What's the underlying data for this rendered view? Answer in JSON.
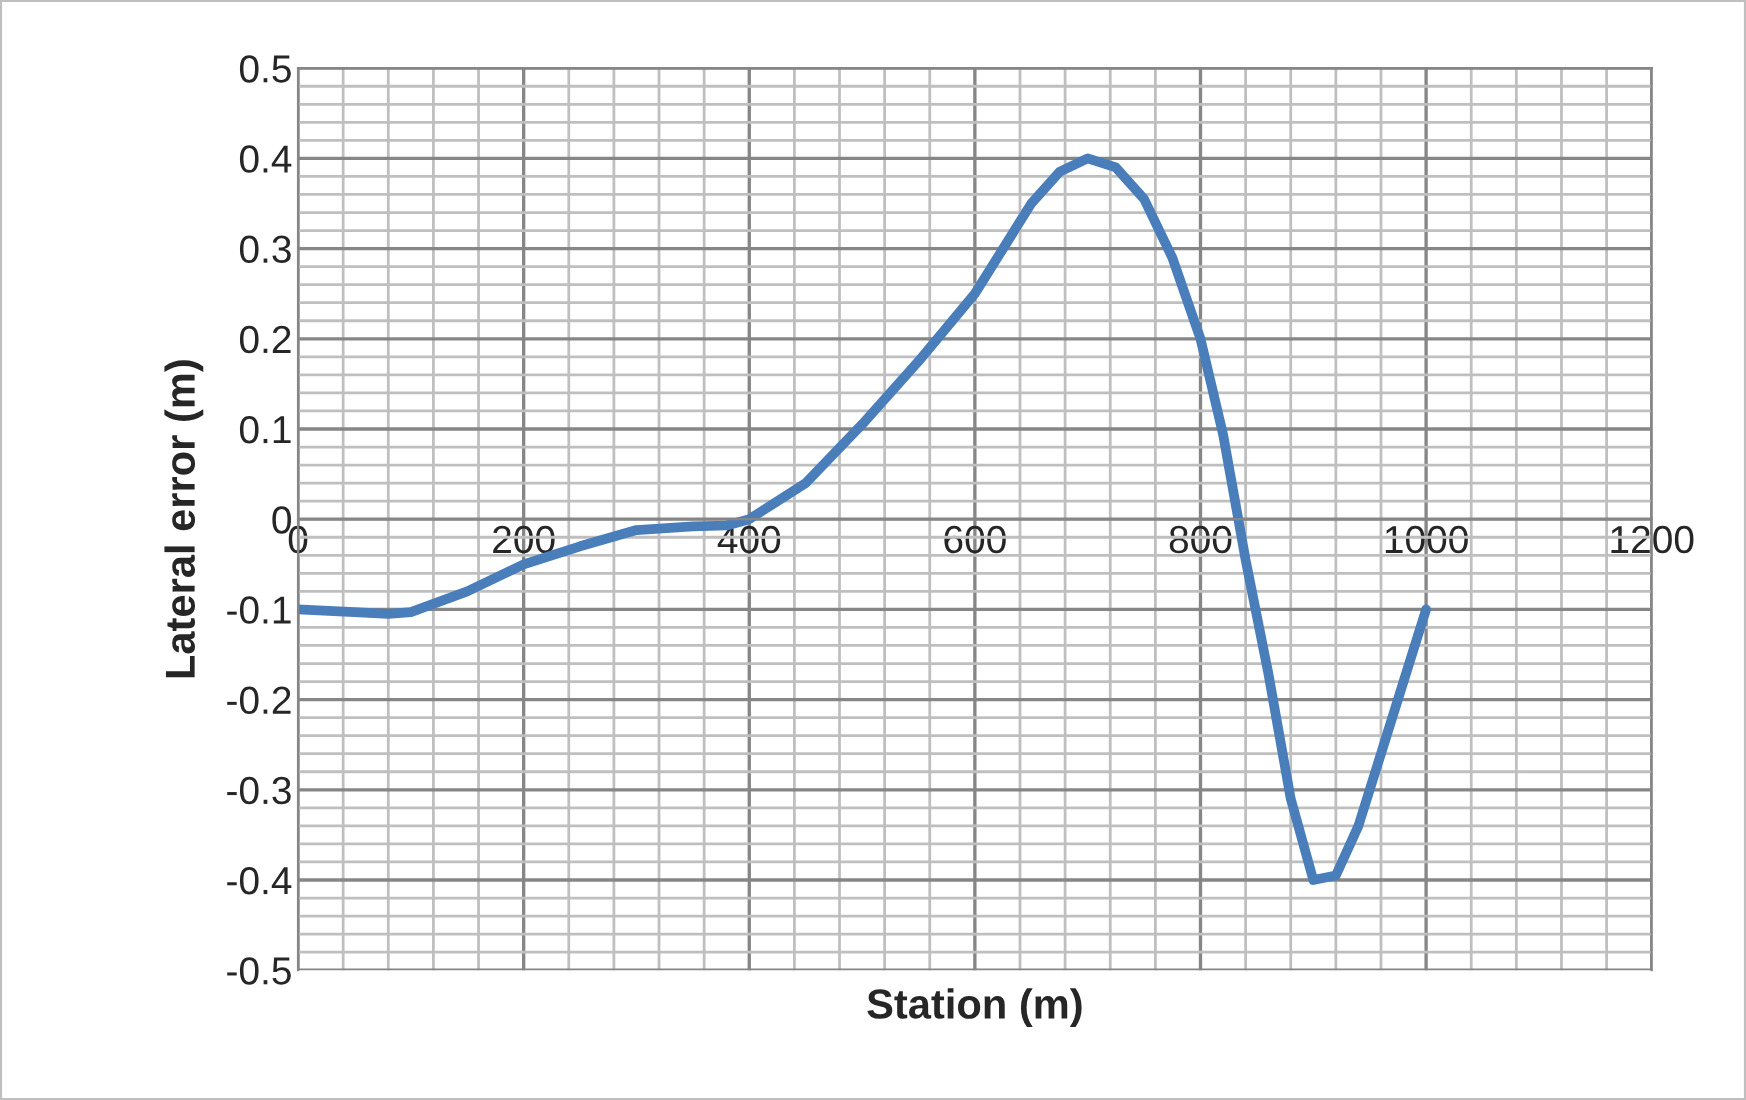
{
  "chart_data": {
    "type": "line",
    "xlabel": "Station (m)",
    "ylabel": "Lateral error (m)",
    "x": [
      0,
      50,
      80,
      100,
      150,
      200,
      250,
      300,
      350,
      380,
      400,
      450,
      500,
      550,
      600,
      625,
      650,
      675,
      700,
      725,
      750,
      775,
      800,
      820,
      840,
      860,
      880,
      900,
      920,
      940,
      960,
      980,
      1000
    ],
    "series": [
      {
        "color": "#4a7ebb",
        "values": [
          -0.1,
          -0.103,
          -0.105,
          -0.103,
          -0.08,
          -0.05,
          -0.03,
          -0.012,
          -0.008,
          -0.007,
          0.0,
          0.04,
          0.105,
          0.175,
          0.25,
          0.3,
          0.35,
          0.385,
          0.4,
          0.39,
          0.355,
          0.29,
          0.2,
          0.094,
          -0.045,
          -0.17,
          -0.31,
          -0.4,
          -0.395,
          -0.34,
          -0.26,
          -0.18,
          -0.1
        ]
      }
    ],
    "xlim": [
      0,
      1200
    ],
    "xticks": [
      0,
      200,
      400,
      600,
      800,
      1000,
      1200
    ],
    "ylim": [
      -0.5,
      0.5
    ],
    "yticks": [
      -0.5,
      -0.4,
      -0.3,
      -0.2,
      -0.1,
      0,
      0.1,
      0.2,
      0.3,
      0.4,
      0.5
    ],
    "grid": true,
    "legend": false,
    "marker": "none",
    "line_style": "solid"
  }
}
